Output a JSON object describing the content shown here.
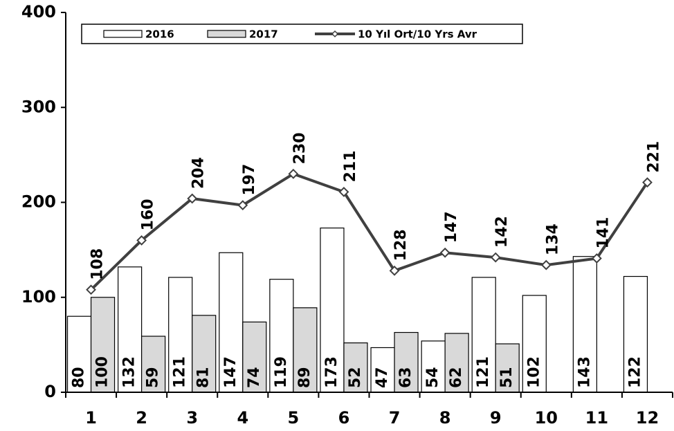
{
  "chart_data": {
    "type": "bar",
    "categories": [
      "1",
      "2",
      "3",
      "4",
      "5",
      "6",
      "7",
      "8",
      "9",
      "10",
      "11",
      "12"
    ],
    "series": [
      {
        "name": "2016",
        "kind": "bar",
        "color": "#ffffff",
        "values": [
          80,
          132,
          121,
          147,
          119,
          173,
          47,
          54,
          121,
          102,
          143,
          122
        ]
      },
      {
        "name": "2017",
        "kind": "bar",
        "color": "#d9d9d9",
        "values": [
          100,
          59,
          81,
          74,
          89,
          52,
          63,
          62,
          51,
          null,
          null,
          null
        ]
      },
      {
        "name": "10 Yıl Ort/10 Yrs Avr",
        "kind": "line",
        "color": "#404040",
        "values": [
          108,
          160,
          204,
          197,
          230,
          211,
          128,
          147,
          142,
          134,
          141,
          221
        ]
      }
    ],
    "ylim": [
      0,
      400
    ],
    "yticks": [
      0,
      100,
      200,
      300,
      400
    ],
    "grid": false,
    "legend": "top"
  }
}
